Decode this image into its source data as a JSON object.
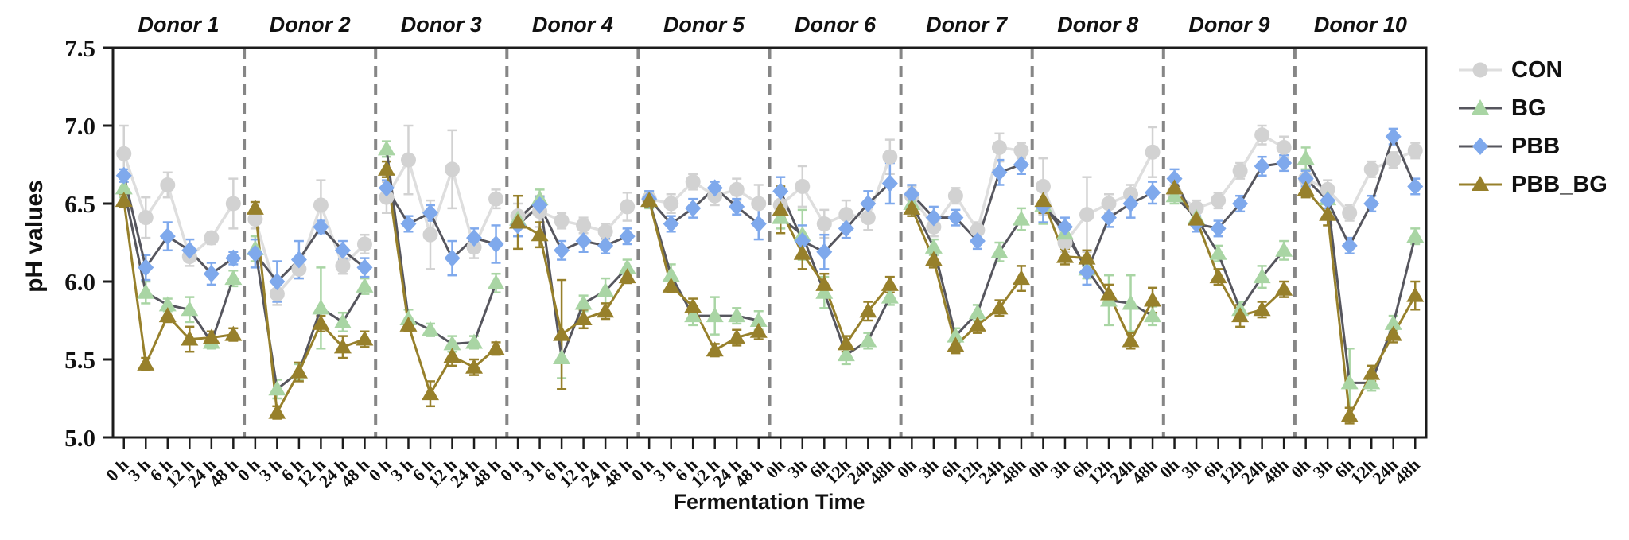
{
  "chart_data": {
    "type": "line",
    "title": "",
    "ylabel": "pH values",
    "xlabel": "Fermentation Time",
    "ylim": [
      5.0,
      7.5
    ],
    "yticks": [
      5.0,
      5.5,
      6.0,
      6.5,
      7.0,
      7.5
    ],
    "ytick_labels": [
      "5.0",
      "5.5",
      "6.0",
      "6.5",
      "7.0",
      "7.5"
    ],
    "grid": false,
    "legend_position": "right-top",
    "axis_color": "#1c1c1c",
    "separator_color": "#868686",
    "series_defs": [
      {
        "name": "CON",
        "marker": "circle",
        "marker_color": "#d2d2d2",
        "line_color": "#dedede"
      },
      {
        "name": "BG",
        "marker": "triangle",
        "marker_color": "#a9d5a4",
        "line_color": "#56565e"
      },
      {
        "name": "PBB",
        "marker": "diamond",
        "marker_color": "#7fa9ec",
        "line_color": "#56565e"
      },
      {
        "name": "PBB_BG",
        "marker": "triangle",
        "marker_color": "#97802b",
        "line_color": "#97802b"
      }
    ],
    "panels": [
      {
        "donor": "Donor 1",
        "x_labels": [
          "0 h",
          "3 h",
          "6 h",
          "12 h",
          "24 h",
          "48 h"
        ],
        "series": {
          "CON": {
            "values": [
              6.82,
              6.41,
              6.62,
              6.16,
              6.28,
              6.5
            ],
            "err": [
              0.18,
              0.13,
              0.08,
              0.06,
              0.04,
              0.16
            ]
          },
          "BG": {
            "values": [
              6.6,
              5.93,
              5.85,
              5.82,
              5.61,
              6.02
            ],
            "err": [
              0.06,
              0.07,
              0.04,
              0.08,
              0.04,
              0.05
            ]
          },
          "PBB": {
            "values": [
              6.68,
              6.09,
              6.29,
              6.2,
              6.05,
              6.15
            ],
            "err": [
              0.04,
              0.08,
              0.09,
              0.07,
              0.07,
              0.04
            ]
          },
          "PBB_BG": {
            "values": [
              6.52,
              5.47,
              5.78,
              5.63,
              5.64,
              5.66
            ],
            "err": [
              0.04,
              0.04,
              0.04,
              0.08,
              0.04,
              0.04
            ]
          }
        }
      },
      {
        "donor": "Donor 2",
        "x_labels": [
          "0 h",
          "3 h",
          "6 h",
          "12 h",
          "24 h",
          "48 h"
        ],
        "series": {
          "CON": {
            "values": [
              6.4,
              5.92,
              6.08,
              6.49,
              6.1,
              6.24
            ],
            "err": [
              0.06,
              0.07,
              0.06,
              0.16,
              0.05,
              0.06
            ]
          },
          "BG": {
            "values": [
              6.21,
              5.31,
              5.42,
              5.83,
              5.74,
              5.97
            ],
            "err": [
              0.08,
              0.06,
              0.05,
              0.26,
              0.06,
              0.05
            ]
          },
          "PBB": {
            "values": [
              6.18,
              6.0,
              6.14,
              6.35,
              6.2,
              6.09
            ],
            "err": [
              0.09,
              0.13,
              0.12,
              0.04,
              0.06,
              0.06
            ]
          },
          "PBB_BG": {
            "values": [
              6.47,
              5.16,
              5.42,
              5.73,
              5.58,
              5.63
            ],
            "err": [
              0.04,
              0.04,
              0.06,
              0.05,
              0.07,
              0.05
            ]
          }
        }
      },
      {
        "donor": "Donor 3",
        "x_labels": [
          "0 h",
          "3 h",
          "6 h",
          "12 h",
          "24 h",
          "48 h"
        ],
        "series": {
          "CON": {
            "values": [
              6.54,
              6.78,
              6.3,
              6.72,
              6.22,
              6.53
            ],
            "err": [
              0.1,
              0.22,
              0.22,
              0.25,
              0.07,
              0.06
            ]
          },
          "BG": {
            "values": [
              6.85,
              5.76,
              5.69,
              5.6,
              5.61,
              5.99
            ],
            "err": [
              0.05,
              0.06,
              0.04,
              0.05,
              0.04,
              0.06
            ]
          },
          "PBB": {
            "values": [
              6.6,
              6.37,
              6.44,
              6.15,
              6.28,
              6.24
            ],
            "err": [
              0.05,
              0.05,
              0.05,
              0.11,
              0.06,
              0.12
            ]
          },
          "PBB_BG": {
            "values": [
              6.72,
              5.72,
              5.28,
              5.52,
              5.45,
              5.57
            ],
            "err": [
              0.05,
              0.04,
              0.08,
              0.06,
              0.05,
              0.04
            ]
          }
        }
      },
      {
        "donor": "Donor 4",
        "x_labels": [
          "0 h",
          "3 h",
          "6 h",
          "12 h",
          "24 h",
          "48 h"
        ],
        "series": {
          "CON": {
            "values": [
              6.42,
              6.45,
              6.39,
              6.36,
              6.32,
              6.48
            ],
            "err": [
              0.08,
              0.1,
              0.05,
              0.05,
              0.05,
              0.09
            ]
          },
          "BG": {
            "values": [
              6.4,
              6.53,
              5.51,
              5.86,
              5.94,
              6.09
            ],
            "err": [
              0.05,
              0.06,
              0.13,
              0.05,
              0.08,
              0.05
            ]
          },
          "PBB": {
            "values": [
              6.36,
              6.49,
              6.2,
              6.26,
              6.23,
              6.29
            ],
            "err": [
              0.07,
              0.05,
              0.06,
              0.07,
              0.05,
              0.05
            ]
          },
          "PBB_BG": {
            "values": [
              6.38,
              6.3,
              5.66,
              5.76,
              5.81,
              6.03
            ],
            "err": [
              0.17,
              0.08,
              0.35,
              0.06,
              0.05,
              0.04
            ]
          }
        }
      },
      {
        "donor": "Donor 5",
        "x_labels": [
          "0 h",
          "3 h",
          "6 h",
          "12 h",
          "24 h",
          "48 h"
        ],
        "series": {
          "CON": {
            "values": [
              6.53,
              6.5,
              6.64,
              6.55,
              6.59,
              6.5
            ],
            "err": [
              0.05,
              0.06,
              0.05,
              0.06,
              0.07,
              0.12
            ]
          },
          "BG": {
            "values": [
              6.52,
              6.04,
              5.78,
              5.78,
              5.78,
              5.75
            ],
            "err": [
              0.05,
              0.07,
              0.06,
              0.12,
              0.05,
              0.06
            ]
          },
          "PBB": {
            "values": [
              6.53,
              6.37,
              6.47,
              6.6,
              6.48,
              6.37
            ],
            "err": [
              0.05,
              0.05,
              0.06,
              0.04,
              0.05,
              0.1
            ]
          },
          "PBB_BG": {
            "values": [
              6.52,
              5.97,
              5.84,
              5.56,
              5.64,
              5.68
            ],
            "err": [
              0.04,
              0.04,
              0.05,
              0.04,
              0.05,
              0.05
            ]
          }
        }
      },
      {
        "donor": "Donor 6",
        "x_labels": [
          "0h",
          "3h",
          "6h",
          "12h",
          "24h",
          "48h"
        ],
        "series": {
          "CON": {
            "values": [
              6.49,
              6.61,
              6.37,
              6.43,
              6.41,
              6.8
            ],
            "err": [
              0.08,
              0.13,
              0.09,
              0.09,
              0.08,
              0.11
            ]
          },
          "BG": {
            "values": [
              6.41,
              6.3,
              5.93,
              5.53,
              5.62,
              5.9
            ],
            "err": [
              0.07,
              0.16,
              0.1,
              0.06,
              0.05,
              0.05
            ]
          },
          "PBB": {
            "values": [
              6.58,
              6.26,
              6.19,
              6.34,
              6.5,
              6.63
            ],
            "err": [
              0.09,
              0.1,
              0.11,
              0.06,
              0.08,
              0.13
            ]
          },
          "PBB_BG": {
            "values": [
              6.46,
              6.18,
              5.98,
              5.6,
              5.81,
              5.98
            ],
            "err": [
              0.15,
              0.1,
              0.07,
              0.05,
              0.06,
              0.05
            ]
          }
        }
      },
      {
        "donor": "Donor 7",
        "x_labels": [
          "0h",
          "3h",
          "6h",
          "12h",
          "24h",
          "48h"
        ],
        "series": {
          "CON": {
            "values": [
              6.55,
              6.35,
              6.55,
              6.33,
              6.86,
              6.84
            ],
            "err": [
              0.06,
              0.06,
              0.05,
              0.05,
              0.09,
              0.05
            ]
          },
          "BG": {
            "values": [
              6.5,
              6.22,
              5.65,
              5.8,
              6.19,
              6.4
            ],
            "err": [
              0.05,
              0.05,
              0.05,
              0.05,
              0.06,
              0.07
            ]
          },
          "PBB": {
            "values": [
              6.56,
              6.41,
              6.41,
              6.26,
              6.7,
              6.75
            ],
            "err": [
              0.06,
              0.07,
              0.05,
              0.05,
              0.08,
              0.06
            ]
          },
          "PBB_BG": {
            "values": [
              6.47,
              6.14,
              5.59,
              5.72,
              5.83,
              6.02
            ],
            "err": [
              0.05,
              0.05,
              0.05,
              0.05,
              0.05,
              0.08
            ]
          }
        }
      },
      {
        "donor": "Donor 8",
        "x_labels": [
          "0h",
          "3h",
          "6h",
          "12h",
          "24h",
          "48h"
        ],
        "series": {
          "CON": {
            "values": [
              6.61,
              6.25,
              6.43,
              6.5,
              6.56,
              6.83
            ],
            "err": [
              0.18,
              0.06,
              0.24,
              0.06,
              0.06,
              0.16
            ]
          },
          "BG": {
            "values": [
              6.49,
              6.31,
              6.08,
              5.88,
              5.86,
              5.78
            ],
            "err": [
              0.12,
              0.06,
              0.06,
              0.16,
              0.18,
              0.06
            ]
          },
          "PBB": {
            "values": [
              6.48,
              6.35,
              6.06,
              6.41,
              6.5,
              6.57
            ],
            "err": [
              0.1,
              0.06,
              0.08,
              0.06,
              0.09,
              0.07
            ]
          },
          "PBB_BG": {
            "values": [
              6.52,
              6.16,
              6.15,
              5.92,
              5.62,
              5.88
            ],
            "err": [
              0.08,
              0.05,
              0.05,
              0.06,
              0.05,
              0.08
            ]
          }
        }
      },
      {
        "donor": "Donor 9",
        "x_labels": [
          "0h",
          "3h",
          "6h",
          "12h",
          "24h",
          "48h"
        ],
        "series": {
          "CON": {
            "values": [
              6.57,
              6.47,
              6.52,
              6.71,
              6.94,
              6.86
            ],
            "err": [
              0.05,
              0.05,
              0.05,
              0.05,
              0.06,
              0.07
            ]
          },
          "BG": {
            "values": [
              6.55,
              6.41,
              6.18,
              5.82,
              6.03,
              6.2
            ],
            "err": [
              0.05,
              0.05,
              0.05,
              0.05,
              0.07,
              0.06
            ]
          },
          "PBB": {
            "values": [
              6.66,
              6.37,
              6.34,
              6.5,
              6.74,
              6.76
            ],
            "err": [
              0.06,
              0.05,
              0.05,
              0.05,
              0.06,
              0.05
            ]
          },
          "PBB_BG": {
            "values": [
              6.6,
              6.4,
              6.03,
              5.78,
              5.82,
              5.95
            ],
            "err": [
              0.05,
              0.05,
              0.05,
              0.07,
              0.05,
              0.05
            ]
          }
        }
      },
      {
        "donor": "Donor 10",
        "x_labels": [
          "0h",
          "3h",
          "6h",
          "12h",
          "24h",
          "48h"
        ],
        "series": {
          "CON": {
            "values": [
              6.66,
              6.59,
              6.44,
              6.72,
              6.78,
              6.84
            ],
            "err": [
              0.05,
              0.06,
              0.05,
              0.05,
              0.05,
              0.05
            ]
          },
          "BG": {
            "values": [
              6.79,
              6.53,
              5.35,
              5.35,
              5.73,
              6.29
            ],
            "err": [
              0.07,
              0.08,
              0.22,
              0.05,
              0.05,
              0.05
            ]
          },
          "PBB": {
            "values": [
              6.66,
              6.52,
              6.23,
              6.5,
              6.93,
              6.61
            ],
            "err": [
              0.05,
              0.05,
              0.05,
              0.05,
              0.05,
              0.05
            ]
          },
          "PBB_BG": {
            "values": [
              6.59,
              6.43,
              5.14,
              5.41,
              5.66,
              5.91
            ],
            "err": [
              0.05,
              0.07,
              0.05,
              0.05,
              0.05,
              0.09
            ]
          }
        }
      }
    ]
  }
}
